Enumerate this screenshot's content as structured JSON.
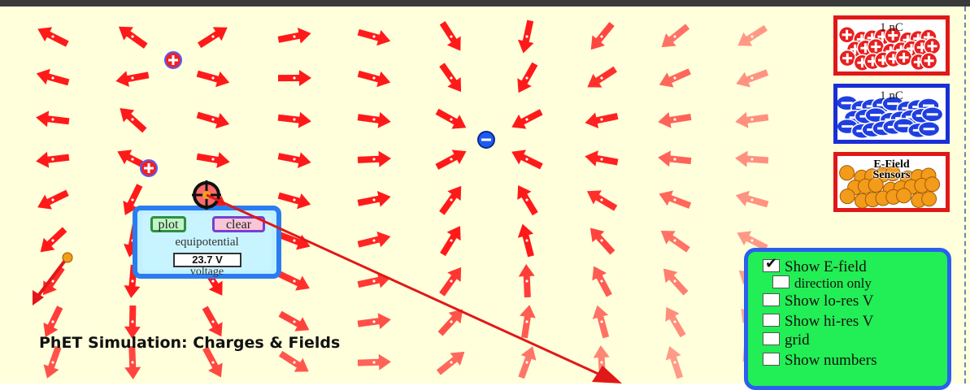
{
  "simulation": {
    "title": "PhET Simulation: Charges & Fields"
  },
  "buckets": {
    "positive": {
      "label": "1 nC",
      "icon": "positive-charge-icon",
      "color": "#e01818"
    },
    "negative": {
      "label": "1 nC",
      "icon": "negative-charge-icon",
      "color": "#1a2fd6"
    },
    "sensors": {
      "label_line1": "E-Field",
      "label_line2": "Sensors",
      "icon": "efield-sensor-icon",
      "color": "#f39b1a"
    }
  },
  "equipotential": {
    "plot_label": "plot",
    "clear_label": "clear",
    "title": "equipotential",
    "voltage_value": "23.7 V",
    "voltage_label": "voltage"
  },
  "controls": {
    "items": [
      {
        "label": "Show E-field",
        "checked": true
      },
      {
        "label": "direction only",
        "checked": false
      },
      {
        "label": "Show lo-res V",
        "checked": false
      },
      {
        "label": "Show hi-res V",
        "checked": false
      },
      {
        "label": "grid",
        "checked": false
      },
      {
        "label": "Show numbers",
        "checked": false
      }
    ]
  },
  "colors": {
    "background": "#ffffdc",
    "field_arrow": "#ff1a1a",
    "panel_border": "#2a5ff0",
    "controls_background": "#22ee55"
  }
}
